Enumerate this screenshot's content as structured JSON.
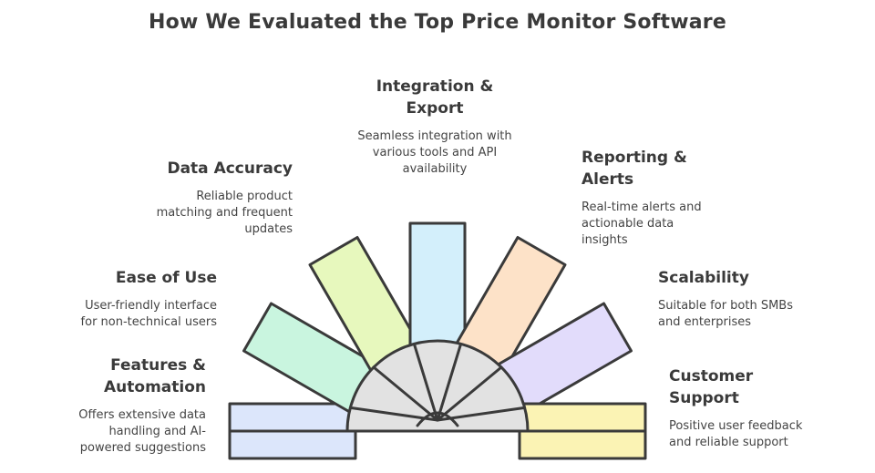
{
  "title": "How We Evaluated the Top Price Monitor Software",
  "items": [
    {
      "id": "features",
      "title_lines": [
        "Features &",
        "Automation"
      ],
      "desc_lines": [
        "Offers extensive data",
        "handling and AI-",
        "powered suggestions"
      ],
      "color": "#dce6fb"
    },
    {
      "id": "ease",
      "title_lines": [
        "Ease of Use"
      ],
      "desc_lines": [
        "User-friendly interface",
        "for non-technical users"
      ],
      "color": "#c9f5df"
    },
    {
      "id": "accuracy",
      "title_lines": [
        "Data Accuracy"
      ],
      "desc_lines": [
        "Reliable product",
        "matching and frequent",
        "updates"
      ],
      "color": "#e7f8bd"
    },
    {
      "id": "integration",
      "title_lines": [
        "Integration &",
        "Export"
      ],
      "desc_lines": [
        "Seamless integration with",
        "various tools and API",
        "availability"
      ],
      "color": "#d3effb"
    },
    {
      "id": "reporting",
      "title_lines": [
        "Reporting &",
        "Alerts"
      ],
      "desc_lines": [
        "Real-time alerts and",
        "actionable data",
        "insights"
      ],
      "color": "#fde2c8"
    },
    {
      "id": "scalability",
      "title_lines": [
        "Scalability"
      ],
      "desc_lines": [
        "Suitable for both SMBs",
        "and enterprises"
      ],
      "color": "#e2dcfb"
    },
    {
      "id": "support",
      "title_lines": [
        "Customer",
        "Support"
      ],
      "desc_lines": [
        "Positive user feedback",
        "and reliable support"
      ],
      "color": "#fbf3b4"
    }
  ],
  "hub_color": "#e2e2e2",
  "stroke_color": "#3a3a3a"
}
